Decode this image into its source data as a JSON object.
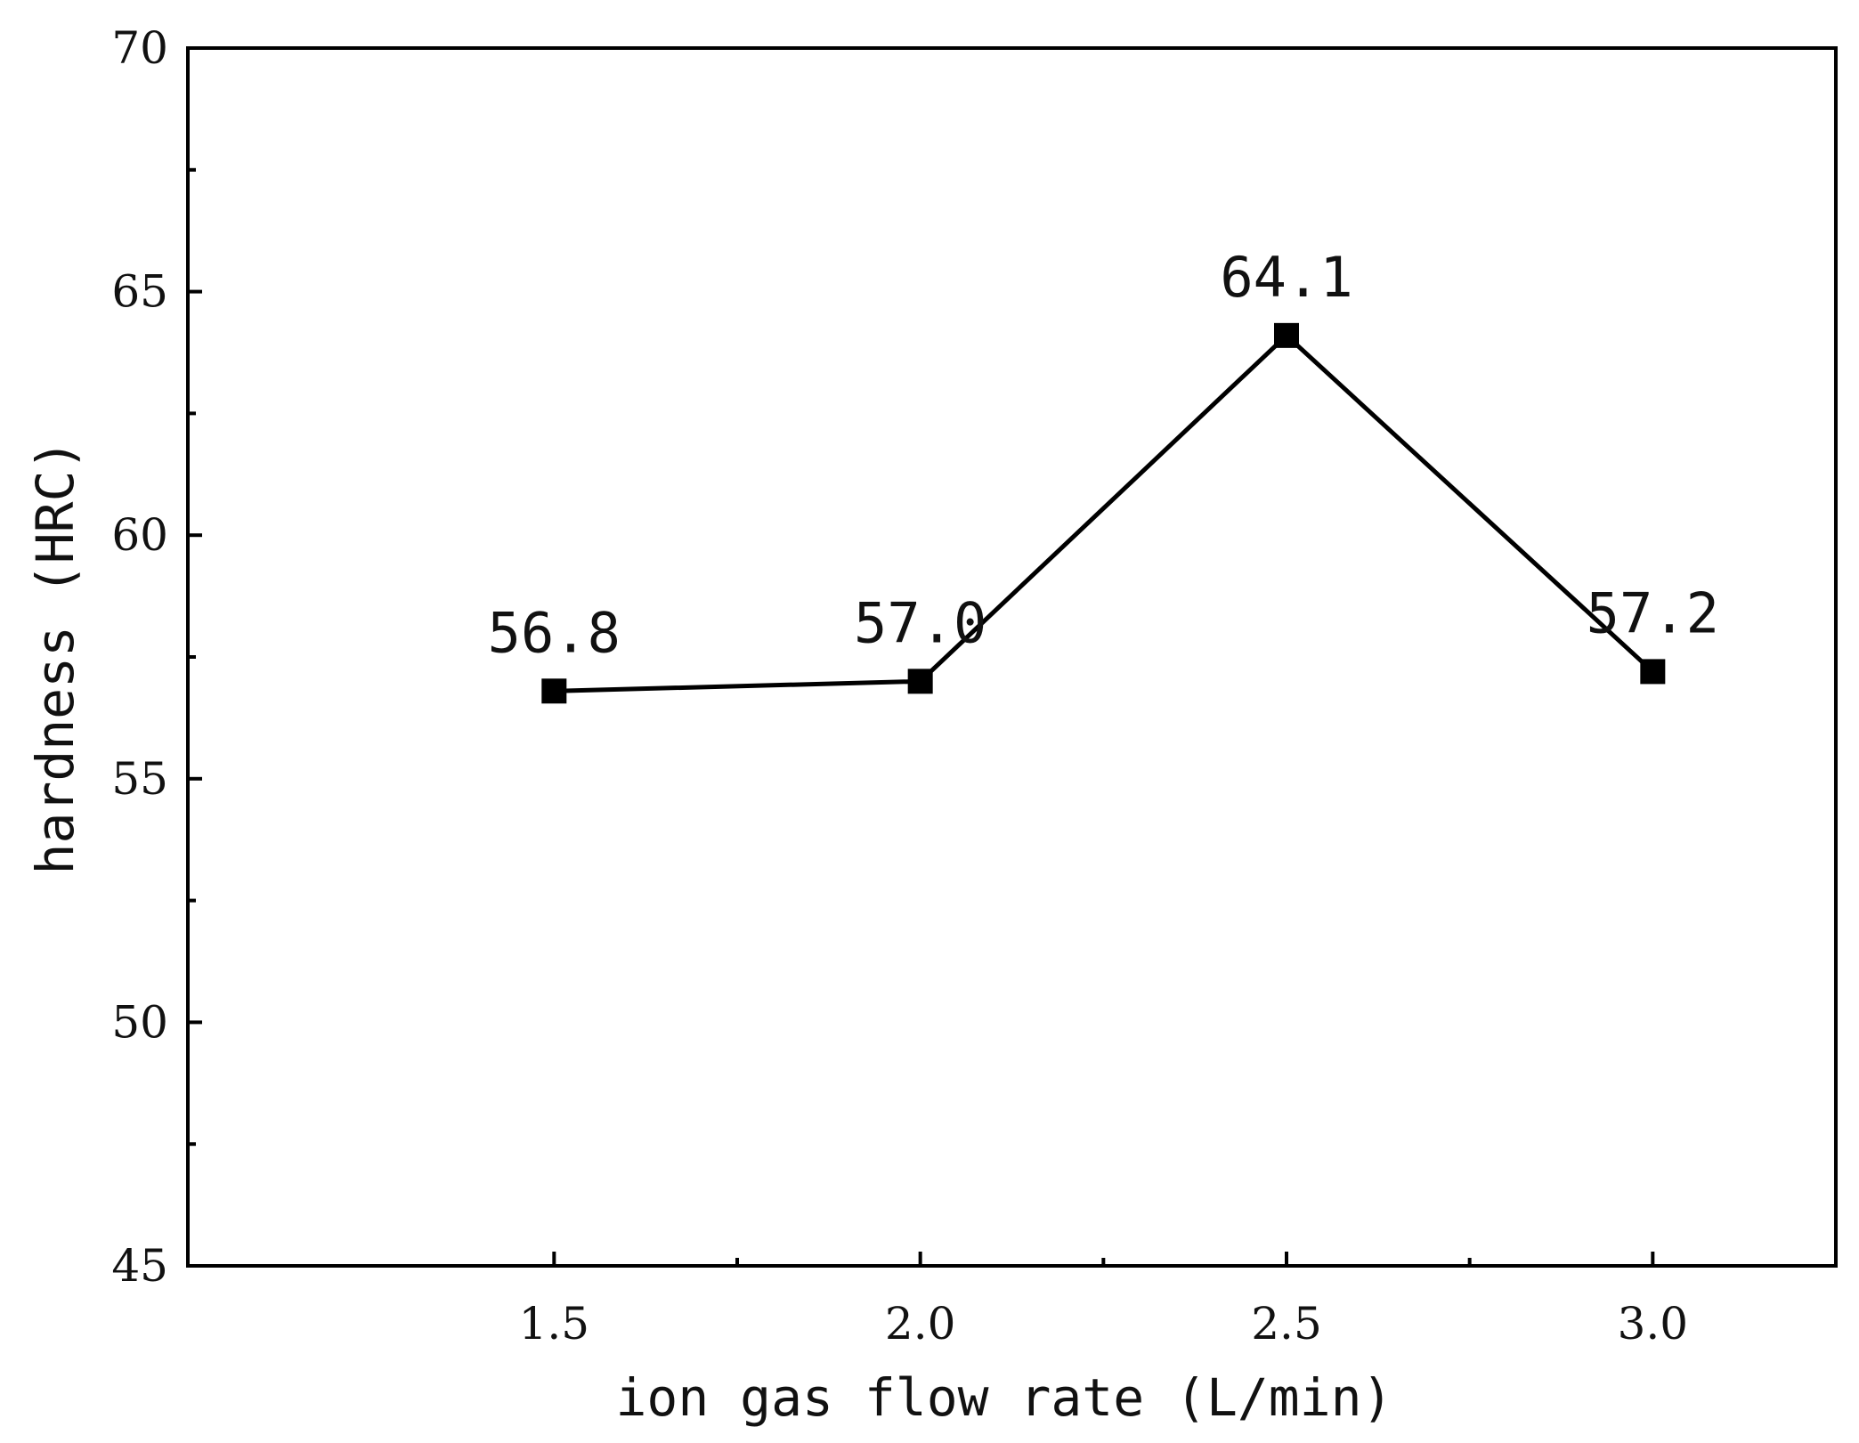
{
  "chart_data": {
    "type": "line",
    "title": "",
    "xlabel": "ion gas flow rate (L/min)",
    "ylabel": "hardness (HRC)",
    "x": [
      1.5,
      2.0,
      2.5,
      3.0
    ],
    "x_tick_labels": [
      "1.5",
      "2.0",
      "2.5",
      "3.0"
    ],
    "xlim": [
      1.0,
      3.25
    ],
    "ylim": [
      45,
      70
    ],
    "y_ticks": [
      45,
      50,
      55,
      60,
      65,
      70
    ],
    "y_tick_labels": [
      "45",
      "50",
      "55",
      "60",
      "65",
      "70"
    ],
    "series": [
      {
        "values": [
          56.8,
          57.0,
          64.1,
          57.2
        ],
        "data_labels": [
          "56.8",
          "57.0",
          "64.1",
          "57.2"
        ],
        "color": "#000000",
        "marker": "square"
      }
    ],
    "grid": false,
    "legend": "none"
  }
}
